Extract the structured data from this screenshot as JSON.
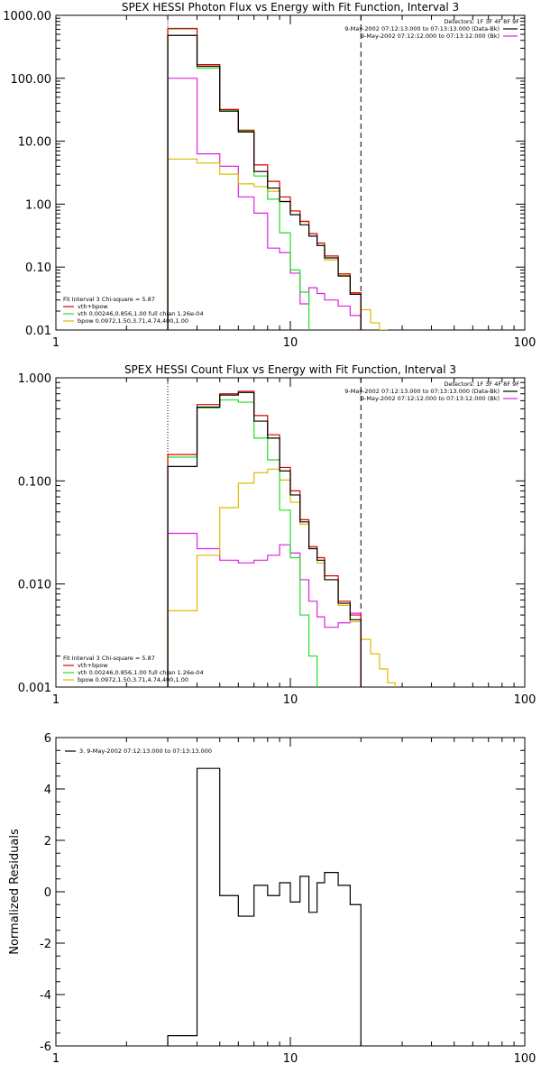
{
  "chart_data": [
    {
      "type": "line",
      "title": "SPEX HESSI Photon Flux vs Energy with Fit Function, Interval 3",
      "xlabel": "",
      "ylabel": "",
      "xscale": "log",
      "yscale": "log",
      "xlim": [
        1,
        100
      ],
      "ylim": [
        0.01,
        1000
      ],
      "xticks": [
        "1",
        "10",
        "100"
      ],
      "yticks": [
        "0.01",
        "0.10",
        "1.00",
        "10.00",
        "100.00",
        "1000.00"
      ],
      "detectors_label": "Detectors: 1F 3F 4F 8F 9F",
      "legend_top": [
        {
          "label": "9-May-2002 07:12:13.000 to 07:13:13.000 (Data-Bk)",
          "color": "#000000"
        },
        {
          "label": "9-May-2002 07:12:12.000 to 07:13:12.000 (Bk)",
          "color": "#dd22dd"
        }
      ],
      "fit_header": "Fit Interval 3   Chi-square = 5.87",
      "legend_bottom": [
        {
          "label": "vth+bpow",
          "color": "#dd0000"
        },
        {
          "label": "vth 0.00246,0.856,1.00  full chian 1.26e-04",
          "color": "#22dd22"
        },
        {
          "label": "bpow 0.0972,1.50,3.71,4.74,400,1.00",
          "color": "#ddbb00"
        }
      ],
      "vlines": [
        {
          "x": 3.0,
          "style": "dotted"
        },
        {
          "x": 20.0,
          "style": "dashed"
        }
      ],
      "series": [
        {
          "name": "Data-Bk",
          "color": "#000000",
          "edges": [
            3,
            4,
            5,
            6,
            7,
            8,
            9,
            10,
            11,
            12,
            13,
            14,
            16,
            18,
            20
          ],
          "values": [
            480,
            155,
            30,
            14,
            3.3,
            1.8,
            1.1,
            0.68,
            0.47,
            0.31,
            0.22,
            0.14,
            0.072,
            0.037
          ]
        },
        {
          "name": "vth+bpow",
          "color": "#dd0000",
          "edges": [
            3,
            4,
            5,
            6,
            7,
            8,
            9,
            10,
            11,
            12,
            13,
            14,
            16,
            18,
            20
          ],
          "values": [
            620,
            165,
            32,
            15,
            4.2,
            2.3,
            1.3,
            0.78,
            0.53,
            0.34,
            0.24,
            0.15,
            0.078,
            0.039
          ]
        },
        {
          "name": "vth",
          "color": "#22dd22",
          "edges": [
            3,
            4,
            5,
            6,
            7,
            8,
            9,
            10,
            11,
            12
          ],
          "values": [
            610,
            145,
            31,
            14.5,
            2.8,
            1.2,
            0.35,
            0.09,
            0.04
          ]
        },
        {
          "name": "bpow",
          "color": "#ddbb00",
          "edges": [
            3,
            4,
            5,
            6,
            7,
            8,
            9,
            10,
            11,
            12,
            13,
            14,
            16,
            18,
            20,
            22,
            24,
            26
          ],
          "values": [
            5.2,
            4.5,
            3.0,
            2.1,
            1.9,
            1.6,
            1.1,
            0.78,
            0.54,
            0.34,
            0.22,
            0.13,
            0.074,
            0.039,
            0.021,
            0.013,
            0.01
          ]
        },
        {
          "name": "Bk",
          "color": "#dd22dd",
          "edges": [
            3,
            4,
            5,
            6,
            7,
            8,
            9,
            10,
            11,
            12,
            13,
            14,
            16,
            18,
            20
          ],
          "values": [
            100,
            6.3,
            4.0,
            1.3,
            0.72,
            0.2,
            0.17,
            0.08,
            0.026,
            0.047,
            0.038,
            0.03,
            0.024,
            0.017
          ]
        }
      ]
    },
    {
      "type": "line",
      "title": "SPEX HESSI Count Flux vs Energy with Fit Function, Interval 3",
      "xlabel": "",
      "ylabel": "",
      "xscale": "log",
      "yscale": "log",
      "xlim": [
        1,
        100
      ],
      "ylim": [
        0.001,
        1
      ],
      "xticks": [
        "1",
        "10",
        "100"
      ],
      "yticks": [
        "0.001",
        "0.010",
        "0.100",
        "1.000"
      ],
      "detectors_label": "Detectors: 1F 3F 4F 8F 9F",
      "legend_top": [
        {
          "label": "9-May-2002 07:12:13.000 to 07:13:13.000 (Data-Bk)",
          "color": "#000000"
        },
        {
          "label": "9-May-2002 07:12:12.000 to 07:13:12.000 (Bk)",
          "color": "#dd22dd"
        }
      ],
      "fit_header": "Fit Interval 3   Chi-square = 5.87",
      "legend_bottom": [
        {
          "label": "vth+bpow",
          "color": "#dd0000"
        },
        {
          "label": "vth 0.00246,0.856,1.00  full chian 1.26e-04",
          "color": "#22dd22"
        },
        {
          "label": "bpow 0.0972,1.50,3.71,4.74,400,1.00",
          "color": "#ddbb00"
        }
      ],
      "vlines": [
        {
          "x": 3.0,
          "style": "dotted"
        },
        {
          "x": 20.0,
          "style": "dashed"
        }
      ],
      "series": [
        {
          "name": "Data-Bk",
          "color": "#000000",
          "edges": [
            3,
            4,
            5,
            6,
            7,
            8,
            9,
            10,
            11,
            12,
            13,
            14,
            16,
            18,
            20
          ],
          "values": [
            0.138,
            0.52,
            0.68,
            0.72,
            0.38,
            0.26,
            0.125,
            0.073,
            0.04,
            0.022,
            0.017,
            0.011,
            0.0065,
            0.0045
          ]
        },
        {
          "name": "vth+bpow",
          "color": "#dd0000",
          "edges": [
            3,
            4,
            5,
            6,
            7,
            8,
            9,
            10,
            11,
            12,
            13,
            14,
            16,
            18,
            20
          ],
          "values": [
            0.18,
            0.55,
            0.7,
            0.74,
            0.43,
            0.28,
            0.135,
            0.08,
            0.042,
            0.023,
            0.018,
            0.012,
            0.0068,
            0.005
          ]
        },
        {
          "name": "vth",
          "color": "#22dd22",
          "edges": [
            3,
            4,
            5,
            6,
            7,
            8,
            9,
            10,
            11,
            12,
            13
          ],
          "values": [
            0.17,
            0.51,
            0.61,
            0.58,
            0.26,
            0.16,
            0.052,
            0.018,
            0.005,
            0.002
          ]
        },
        {
          "name": "bpow",
          "color": "#ddbb00",
          "edges": [
            3,
            4,
            5,
            6,
            7,
            8,
            9,
            10,
            11,
            12,
            13,
            14,
            16,
            18,
            20,
            22,
            24,
            26,
            28
          ],
          "values": [
            0.0055,
            0.019,
            0.055,
            0.095,
            0.12,
            0.13,
            0.102,
            0.062,
            0.038,
            0.023,
            0.016,
            0.011,
            0.0062,
            0.0043,
            0.0029,
            0.0021,
            0.0015,
            0.0011
          ]
        },
        {
          "name": "Bk",
          "color": "#dd22dd",
          "edges": [
            3,
            4,
            5,
            6,
            7,
            8,
            9,
            10,
            11,
            12,
            13,
            14,
            16,
            18,
            20
          ],
          "values": [
            0.031,
            0.022,
            0.017,
            0.016,
            0.017,
            0.019,
            0.024,
            0.02,
            0.011,
            0.0068,
            0.0048,
            0.0038,
            0.0042,
            0.0052
          ]
        }
      ]
    },
    {
      "type": "line",
      "title": "",
      "xlabel": "",
      "ylabel": "Normalized Residuals",
      "xscale": "log",
      "yscale": "linear",
      "xlim": [
        1,
        100
      ],
      "ylim": [
        -6,
        6
      ],
      "xticks": [
        "1",
        "10",
        "100"
      ],
      "yticks": [
        "-6",
        "-4",
        "-2",
        "0",
        "2",
        "4",
        "6"
      ],
      "legend": [
        {
          "label": "3. 9-May-2002 07:12:13.000 to 07:13:13.000",
          "color": "#000000"
        }
      ],
      "series": [
        {
          "name": "3. 9-May-2002 07:12:13.000 to 07:13:13.000",
          "color": "#000000",
          "edges": [
            3,
            4,
            5,
            6,
            7,
            8,
            9,
            10,
            11,
            12,
            13,
            14,
            16,
            18,
            20
          ],
          "values": [
            -5.6,
            4.8,
            -0.15,
            -0.95,
            0.25,
            -0.15,
            0.35,
            -0.4,
            0.6,
            -0.8,
            0.35,
            0.75,
            0.25,
            -0.5
          ]
        }
      ]
    }
  ]
}
